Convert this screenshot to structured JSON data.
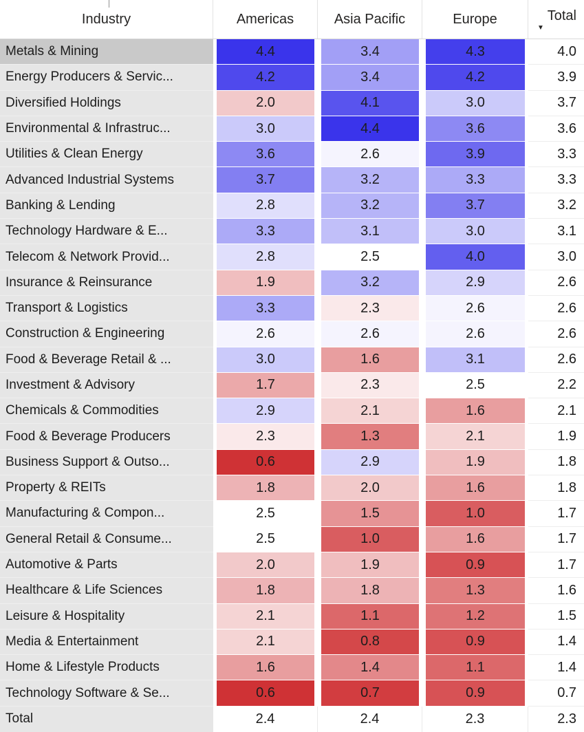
{
  "chart_data": {
    "type": "heatmap",
    "row_header": "Industry",
    "columns": [
      "Americas",
      "Asia Pacific",
      "Europe",
      "Total"
    ],
    "sort": {
      "column": "Total",
      "direction": "descending",
      "arrow_glyph": "▼"
    },
    "color_scale": {
      "applies_to": [
        "Americas",
        "Asia Pacific",
        "Europe"
      ],
      "min_value": 0.6,
      "mid_value": 2.5,
      "max_value": 4.4,
      "min_color": "#CF3235",
      "mid_color": "#FFFFFF",
      "max_color": "#3A34EB"
    },
    "rows": [
      {
        "label": "Metals & Mining",
        "values": [
          "4.4",
          "3.4",
          "4.3"
        ],
        "total": "4.0",
        "selected": true
      },
      {
        "label": "Energy Producers & Servic...",
        "values": [
          "4.2",
          "3.4",
          "4.2"
        ],
        "total": "3.9"
      },
      {
        "label": "Diversified Holdings",
        "values": [
          "2.0",
          "4.1",
          "3.0"
        ],
        "total": "3.7"
      },
      {
        "label": "Environmental & Infrastruc...",
        "values": [
          "3.0",
          "4.4",
          "3.6"
        ],
        "total": "3.6"
      },
      {
        "label": "Utilities & Clean Energy",
        "values": [
          "3.6",
          "2.6",
          "3.9"
        ],
        "total": "3.3"
      },
      {
        "label": "Advanced Industrial Systems",
        "values": [
          "3.7",
          "3.2",
          "3.3"
        ],
        "total": "3.3"
      },
      {
        "label": "Banking & Lending",
        "values": [
          "2.8",
          "3.2",
          "3.7"
        ],
        "total": "3.2"
      },
      {
        "label": "Technology Hardware & E...",
        "values": [
          "3.3",
          "3.1",
          "3.0"
        ],
        "total": "3.1"
      },
      {
        "label": "Telecom & Network Provid...",
        "values": [
          "2.8",
          "2.5",
          "4.0"
        ],
        "total": "3.0"
      },
      {
        "label": "Insurance & Reinsurance",
        "values": [
          "1.9",
          "3.2",
          "2.9"
        ],
        "total": "2.6"
      },
      {
        "label": "Transport & Logistics",
        "values": [
          "3.3",
          "2.3",
          "2.6"
        ],
        "total": "2.6"
      },
      {
        "label": "Construction & Engineering",
        "values": [
          "2.6",
          "2.6",
          "2.6"
        ],
        "total": "2.6"
      },
      {
        "label": "Food & Beverage Retail & ...",
        "values": [
          "3.0",
          "1.6",
          "3.1"
        ],
        "total": "2.6"
      },
      {
        "label": "Investment & Advisory",
        "values": [
          "1.7",
          "2.3",
          "2.5"
        ],
        "total": "2.2"
      },
      {
        "label": "Chemicals & Commodities",
        "values": [
          "2.9",
          "2.1",
          "1.6"
        ],
        "total": "2.1"
      },
      {
        "label": "Food & Beverage Producers",
        "values": [
          "2.3",
          "1.3",
          "2.1"
        ],
        "total": "1.9"
      },
      {
        "label": "Business Support & Outso...",
        "values": [
          "0.6",
          "2.9",
          "1.9"
        ],
        "total": "1.8"
      },
      {
        "label": "Property & REITs",
        "values": [
          "1.8",
          "2.0",
          "1.6"
        ],
        "total": "1.8"
      },
      {
        "label": "Manufacturing & Compon...",
        "values": [
          "2.5",
          "1.5",
          "1.0"
        ],
        "total": "1.7"
      },
      {
        "label": "General Retail & Consume...",
        "values": [
          "2.5",
          "1.0",
          "1.6"
        ],
        "total": "1.7"
      },
      {
        "label": "Automotive & Parts",
        "values": [
          "2.0",
          "1.9",
          "0.9"
        ],
        "total": "1.7"
      },
      {
        "label": "Healthcare & Life Sciences",
        "values": [
          "1.8",
          "1.8",
          "1.3"
        ],
        "total": "1.6"
      },
      {
        "label": "Leisure & Hospitality",
        "values": [
          "2.1",
          "1.1",
          "1.2"
        ],
        "total": "1.5"
      },
      {
        "label": "Media & Entertainment",
        "values": [
          "2.1",
          "0.8",
          "0.9"
        ],
        "total": "1.4"
      },
      {
        "label": "Home & Lifestyle Products",
        "values": [
          "1.6",
          "1.4",
          "1.1"
        ],
        "total": "1.4"
      },
      {
        "label": "Technology Software & Se...",
        "values": [
          "0.6",
          "0.7",
          "0.9"
        ],
        "total": "0.7"
      }
    ],
    "total_row": {
      "label": "Total",
      "values": [
        "2.4",
        "2.4",
        "2.3"
      ],
      "total": "2.3"
    }
  },
  "ui_colors": {
    "header_text": "#252423",
    "body_text": "#1d1d1d",
    "row_label_bg": "#e6e6e6",
    "selected_row_label_bg": "#c9c9c9",
    "header_border": "#d9d9d9",
    "row_separator": "#ededed"
  }
}
